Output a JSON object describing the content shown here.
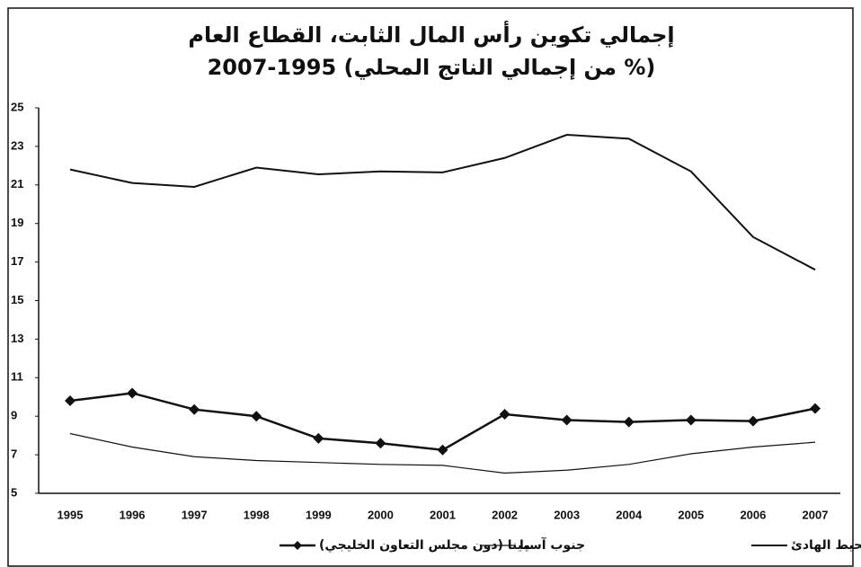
{
  "chart_data": {
    "type": "line",
    "title": "إجمالي تكوين رأس المال الثابت، القطاع العام",
    "subtitle": "(% من إجمالي الناتج المحلي) 1995-2007",
    "categories": [
      "1995",
      "1996",
      "1997",
      "1998",
      "1999",
      "2000",
      "2001",
      "2002",
      "2003",
      "2004",
      "2005",
      "2006",
      "2007"
    ],
    "series": [
      {
        "name": "شرق أسيا والمحيط الهادئ",
        "color": "#111111",
        "values": [
          21.8,
          21.1,
          20.9,
          21.9,
          21.55,
          21.7,
          21.65,
          22.4,
          23.6,
          23.4,
          21.7,
          18.3,
          16.6
        ]
      },
      {
        "name": "جنوب آسيا",
        "color": "#111111",
        "values": [
          8.1,
          7.4,
          6.9,
          6.7,
          6.6,
          6.5,
          6.45,
          6.05,
          6.2,
          6.5,
          7.05,
          7.4,
          7.65
        ]
      },
      {
        "name": "مينا (دون مجلس التعاون الخليجي)",
        "color": "#111111",
        "marker": "diamond",
        "values": [
          9.8,
          10.2,
          9.35,
          9.0,
          7.85,
          7.6,
          7.25,
          9.1,
          8.8,
          8.7,
          8.8,
          8.75,
          9.4
        ]
      }
    ],
    "ylim": [
      5,
      25
    ],
    "yticks": [
      5,
      7,
      9,
      11,
      13,
      15,
      17,
      19,
      21,
      23,
      25
    ],
    "grid": false
  }
}
